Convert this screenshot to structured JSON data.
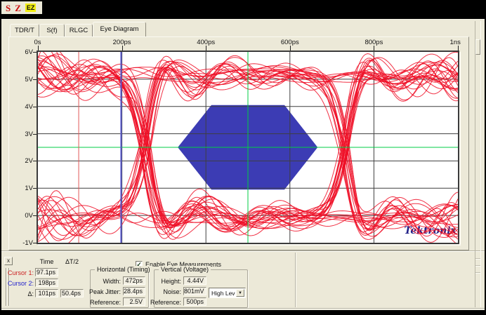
{
  "window": {
    "logo_items": [
      {
        "label": "S"
      },
      {
        "label": "Z"
      },
      {
        "label": "EZ"
      }
    ]
  },
  "tabs": {
    "items": [
      {
        "label": "TDR/T"
      },
      {
        "label": "S(f)"
      },
      {
        "label": "RLGC"
      },
      {
        "label": "Eye Diagram"
      }
    ],
    "active_index": 3
  },
  "plot": {
    "x_axis": {
      "ticks": [
        {
          "label": "0s",
          "t_ps": 0
        },
        {
          "label": "200ps",
          "t_ps": 200
        },
        {
          "label": "400ps",
          "t_ps": 400
        },
        {
          "label": "600ps",
          "t_ps": 600
        },
        {
          "label": "800ps",
          "t_ps": 800
        },
        {
          "label": "1ns",
          "t_ps": 1000
        }
      ]
    },
    "y_axis": {
      "ticks": [
        {
          "label": "6V",
          "v": 6
        },
        {
          "label": "5V",
          "v": 5
        },
        {
          "label": "4V",
          "v": 4
        },
        {
          "label": "3V",
          "v": 3
        },
        {
          "label": "2V",
          "v": 2
        },
        {
          "label": "1V",
          "v": 1
        },
        {
          "label": "0V",
          "v": 0
        },
        {
          "label": "-1V",
          "v": -1
        }
      ]
    },
    "watermark": "Tektronix",
    "colors": {
      "trace": "#ef0d25",
      "mask": "#3c3cb4",
      "grid": "#3f3f3f",
      "reference": "#00cc44",
      "cursor1": "#e05858",
      "cursor2": "#5b5bd0",
      "background": "#ffffff",
      "watermark_color": "#222288",
      "watermark_accent": "#cc2222"
    },
    "reference_lines": {
      "vertical_t_ps": 500,
      "horizontal_v": 2.5
    },
    "cursors": [
      {
        "name": "Cursor 1",
        "t_ps": 97.1
      },
      {
        "name": "Cursor 2",
        "t_ps": 198
      }
    ],
    "mask_polygon": [
      [
        333,
        2.5
      ],
      [
        413,
        4.05
      ],
      [
        587,
        4.05
      ],
      [
        666,
        2.5
      ],
      [
        587,
        0.95
      ],
      [
        413,
        0.95
      ]
    ],
    "eye": {
      "high_v": 5.15,
      "low_v": -0.1,
      "crossings_ps": [
        255,
        730
      ],
      "unit_interval_ps": 475,
      "trace_count": 46,
      "seed": 20,
      "t_range_ps": [
        0,
        1000
      ],
      "v_range": [
        -1,
        6
      ]
    }
  },
  "measurements": {
    "close_button": "x",
    "cursor_table": {
      "col_headers": [
        "Time",
        "ΔT/2"
      ],
      "rows": [
        {
          "label": "Cursor 1:",
          "time": "97.1ps",
          "label_color": "#cc2222"
        },
        {
          "label": "Cursor 2:",
          "time": "198ps",
          "label_color": "#2222cc"
        },
        {
          "label": "Δ:",
          "time": "101ps",
          "dt2": "50.4ps",
          "label_color": "#111111"
        }
      ]
    },
    "enable_eye_label": "Enable Eye Measurements",
    "enable_eye_checked": true,
    "horizontal_group": {
      "title": "Horizontal (Timing)",
      "rows": [
        {
          "label": "Width:",
          "value": "472ps"
        },
        {
          "label": "Peak Jitter:",
          "value": "28.4ps"
        },
        {
          "label": "Reference:",
          "value": "2.5V"
        }
      ]
    },
    "vertical_group": {
      "title": "Vertical (Voltage)",
      "rows": [
        {
          "label": "Height:",
          "value": "4.44V"
        },
        {
          "label": "Noise:",
          "value": "801mV"
        },
        {
          "label": "Reference:",
          "value": "500ps"
        }
      ],
      "noise_level_select": "High Level"
    }
  }
}
